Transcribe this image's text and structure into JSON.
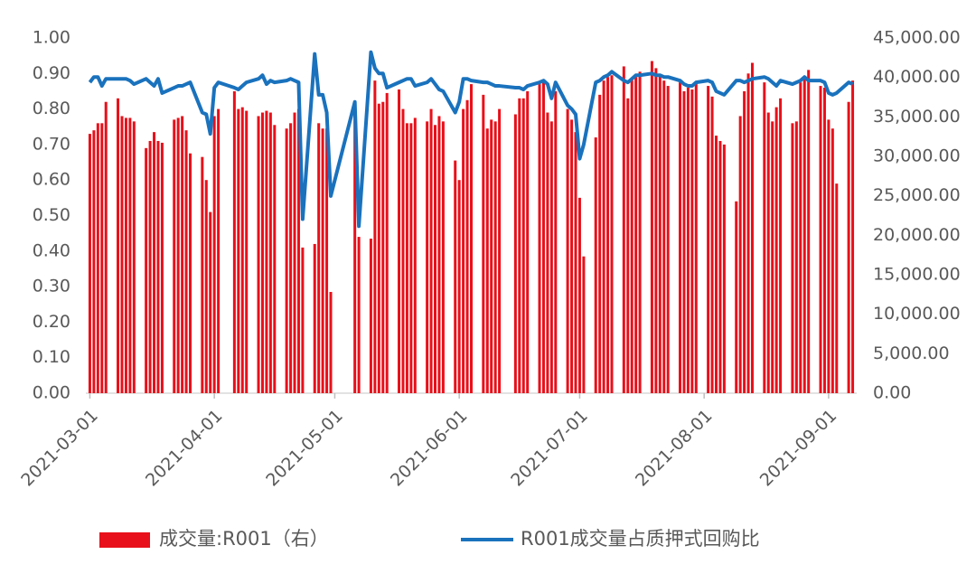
{
  "chart_data": {
    "type": "bar_line",
    "x": [
      "2021-03-01",
      "2021-03-02",
      "2021-03-03",
      "2021-03-04",
      "2021-03-05",
      "2021-03-08",
      "2021-03-09",
      "2021-03-10",
      "2021-03-11",
      "2021-03-12",
      "2021-03-15",
      "2021-03-16",
      "2021-03-17",
      "2021-03-18",
      "2021-03-19",
      "2021-03-22",
      "2021-03-23",
      "2021-03-24",
      "2021-03-25",
      "2021-03-26",
      "2021-03-29",
      "2021-03-30",
      "2021-03-31",
      "2021-04-01",
      "2021-04-02",
      "2021-04-06",
      "2021-04-07",
      "2021-04-08",
      "2021-04-09",
      "2021-04-12",
      "2021-04-13",
      "2021-04-14",
      "2021-04-15",
      "2021-04-16",
      "2021-04-19",
      "2021-04-20",
      "2021-04-21",
      "2021-04-22",
      "2021-04-23",
      "2021-04-26",
      "2021-04-27",
      "2021-04-28",
      "2021-04-29",
      "2021-04-30",
      "2021-05-06",
      "2021-05-07",
      "2021-05-10",
      "2021-05-11",
      "2021-05-12",
      "2021-05-13",
      "2021-05-14",
      "2021-05-17",
      "2021-05-18",
      "2021-05-19",
      "2021-05-20",
      "2021-05-21",
      "2021-05-24",
      "2021-05-25",
      "2021-05-26",
      "2021-05-27",
      "2021-05-28",
      "2021-05-31",
      "2021-06-01",
      "2021-06-02",
      "2021-06-03",
      "2021-06-04",
      "2021-06-07",
      "2021-06-08",
      "2021-06-09",
      "2021-06-10",
      "2021-06-11",
      "2021-06-15",
      "2021-06-16",
      "2021-06-17",
      "2021-06-18",
      "2021-06-21",
      "2021-06-22",
      "2021-06-23",
      "2021-06-24",
      "2021-06-25",
      "2021-06-28",
      "2021-06-29",
      "2021-06-30",
      "2021-07-01",
      "2021-07-02",
      "2021-07-05",
      "2021-07-06",
      "2021-07-07",
      "2021-07-08",
      "2021-07-09",
      "2021-07-12",
      "2021-07-13",
      "2021-07-14",
      "2021-07-15",
      "2021-07-16",
      "2021-07-19",
      "2021-07-20",
      "2021-07-21",
      "2021-07-22",
      "2021-07-23",
      "2021-07-26",
      "2021-07-27",
      "2021-07-28",
      "2021-07-29",
      "2021-07-30",
      "2021-08-02",
      "2021-08-03",
      "2021-08-04",
      "2021-08-05",
      "2021-08-06",
      "2021-08-09",
      "2021-08-10",
      "2021-08-11",
      "2021-08-12",
      "2021-08-13",
      "2021-08-16",
      "2021-08-17",
      "2021-08-18",
      "2021-08-19",
      "2021-08-20",
      "2021-08-23",
      "2021-08-24",
      "2021-08-25",
      "2021-08-26",
      "2021-08-27",
      "2021-08-30",
      "2021-08-31",
      "2021-09-01",
      "2021-09-02",
      "2021-09-03",
      "2021-09-06",
      "2021-09-07"
    ],
    "series": [
      {
        "name": "成交量:R001（右）",
        "type": "bar",
        "axis": "y2",
        "color": "#e8101a",
        "values": [
          32850,
          33300,
          34200,
          34200,
          36900,
          37350,
          35100,
          34875,
          34875,
          34425,
          31050,
          31950,
          33075,
          31950,
          31725,
          34650,
          34875,
          35100,
          33300,
          30375,
          29925,
          27000,
          22950,
          35100,
          36000,
          38250,
          36000,
          36225,
          35775,
          35100,
          35550,
          35775,
          35550,
          33975,
          33525,
          34200,
          35550,
          36000,
          18450,
          18900,
          34200,
          33525,
          33525,
          12825,
          36900,
          19800,
          19575,
          39600,
          36675,
          36900,
          38025,
          38475,
          36000,
          34200,
          34200,
          34875,
          34425,
          36000,
          33975,
          35100,
          34425,
          29475,
          27000,
          36000,
          37125,
          39150,
          37800,
          33525,
          34650,
          34425,
          36000,
          35325,
          37350,
          37350,
          38250,
          39150,
          39375,
          35550,
          34425,
          38250,
          36000,
          34650,
          33075,
          24750,
          17325,
          32400,
          37800,
          39600,
          40050,
          40275,
          41400,
          37350,
          39825,
          40050,
          40725,
          42075,
          41175,
          40275,
          39600,
          38925,
          39375,
          38250,
          38700,
          38475,
          39375,
          38925,
          37575,
          32625,
          31950,
          31500,
          24300,
          35100,
          38250,
          40500,
          41850,
          39375,
          35550,
          34425,
          36225,
          37350,
          34200,
          34425,
          39375,
          40050,
          40950,
          38925,
          38700,
          34650,
          33525,
          26550,
          36900,
          39600
        ]
      },
      {
        "name": "R001成交量占质押式回购比",
        "type": "line",
        "color": "#1a72bd",
        "values": [
          0.875,
          0.89,
          0.89,
          0.865,
          0.885,
          0.885,
          0.885,
          0.885,
          0.88,
          0.87,
          0.885,
          0.875,
          0.865,
          0.885,
          0.845,
          0.86,
          0.865,
          0.865,
          0.87,
          0.875,
          0.79,
          0.785,
          0.73,
          0.86,
          0.875,
          0.86,
          0.855,
          0.865,
          0.875,
          0.885,
          0.895,
          0.87,
          0.88,
          0.875,
          0.88,
          0.885,
          0.88,
          0.875,
          0.49,
          0.955,
          0.84,
          0.84,
          0.79,
          0.555,
          0.82,
          0.47,
          0.96,
          0.915,
          0.9,
          0.9,
          0.86,
          0.875,
          0.88,
          0.885,
          0.885,
          0.865,
          0.875,
          0.885,
          0.87,
          0.855,
          0.85,
          0.79,
          0.82,
          0.885,
          0.885,
          0.88,
          0.875,
          0.875,
          0.87,
          0.865,
          0.865,
          0.86,
          0.86,
          0.855,
          0.865,
          0.875,
          0.88,
          0.87,
          0.83,
          0.875,
          0.81,
          0.8,
          0.785,
          0.66,
          0.7,
          0.875,
          0.88,
          0.89,
          0.895,
          0.905,
          0.88,
          0.875,
          0.885,
          0.895,
          0.895,
          0.9,
          0.895,
          0.895,
          0.89,
          0.89,
          0.88,
          0.87,
          0.865,
          0.865,
          0.875,
          0.88,
          0.875,
          0.85,
          0.845,
          0.84,
          0.88,
          0.88,
          0.875,
          0.88,
          0.885,
          0.89,
          0.885,
          0.875,
          0.865,
          0.88,
          0.87,
          0.875,
          0.88,
          0.89,
          0.88,
          0.88,
          0.875,
          0.845,
          0.84,
          0.845,
          0.875,
          0.87
        ]
      }
    ],
    "xlim": [
      "2021-02-28",
      "2021-09-08"
    ],
    "xticks": [
      "2021-03-01",
      "2021-04-01",
      "2021-05-01",
      "2021-06-01",
      "2021-07-01",
      "2021-08-01",
      "2021-09-01"
    ],
    "ylim": [
      0,
      1
    ],
    "yticks": [
      {
        "value": 0,
        "label": "0.00"
      },
      {
        "value": 0.1,
        "label": "0.10"
      },
      {
        "value": 0.2,
        "label": "0.20"
      },
      {
        "value": 0.3,
        "label": "0.30"
      },
      {
        "value": 0.4,
        "label": "0.40"
      },
      {
        "value": 0.5,
        "label": "0.50"
      },
      {
        "value": 0.6,
        "label": "0.60"
      },
      {
        "value": 0.7,
        "label": "0.70"
      },
      {
        "value": 0.8,
        "label": "0.80"
      },
      {
        "value": 0.9,
        "label": "0.90"
      },
      {
        "value": 1,
        "label": "1.00"
      }
    ],
    "y2lim": [
      0,
      45000
    ],
    "y2ticks": [
      {
        "value": 0,
        "label": "0.00"
      },
      {
        "value": 5000,
        "label": "5,000.00"
      },
      {
        "value": 10000,
        "label": "10,000.00"
      },
      {
        "value": 15000,
        "label": "15,000.00"
      },
      {
        "value": 20000,
        "label": "20,000.00"
      },
      {
        "value": 25000,
        "label": "25,000.00"
      },
      {
        "value": 30000,
        "label": "30,000.00"
      },
      {
        "value": 35000,
        "label": "35,000.00"
      },
      {
        "value": 40000,
        "label": "40,000.00"
      },
      {
        "value": 45000,
        "label": "45,000.00"
      }
    ],
    "legend": "bottom"
  }
}
